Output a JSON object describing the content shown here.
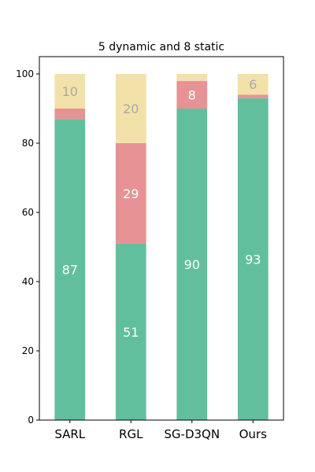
{
  "chart_data": {
    "type": "bar",
    "stacked": true,
    "title": "5 dynamic and 8 static",
    "xlabel": "",
    "ylabel": "",
    "ylim": [
      0,
      105
    ],
    "yticks": [
      0,
      20,
      40,
      60,
      80,
      100
    ],
    "grid": false,
    "categories": [
      "SARL",
      "RGL",
      "SG-D3QN",
      "Ours"
    ],
    "series": [
      {
        "color": "#62bf9e",
        "label_color": "#ffffff",
        "values": [
          87,
          51,
          90,
          93
        ],
        "labels": [
          "87",
          "51",
          "90",
          "93"
        ]
      },
      {
        "color": "#e79395",
        "label_color": "#ffffff",
        "values": [
          3,
          29,
          8,
          1
        ],
        "labels": [
          "",
          "29",
          "8",
          ""
        ]
      },
      {
        "color": "#f2e2a9",
        "label_color": "#a9a9a9",
        "values": [
          10,
          20,
          2,
          6
        ],
        "labels": [
          "10",
          "20",
          "",
          "6"
        ]
      }
    ]
  }
}
